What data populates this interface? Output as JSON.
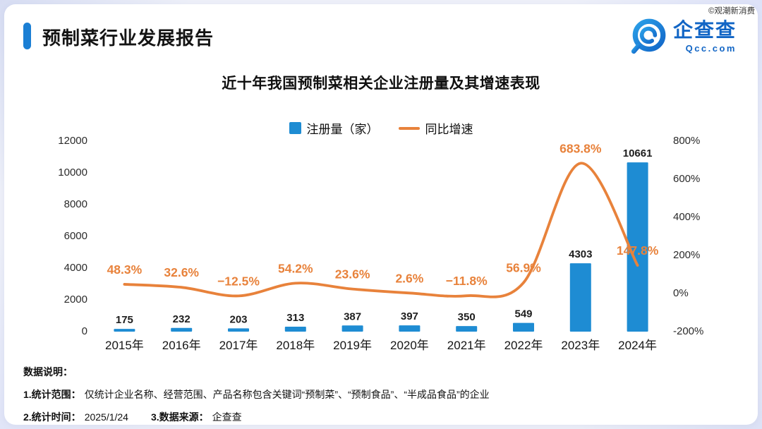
{
  "header": {
    "accent_color": "#1B7FD4",
    "title": "预制菜行业发展报告",
    "brand_name": "企查查",
    "brand_domain": "Qcc.com",
    "watermark": "©观潮新消费"
  },
  "chart_data": {
    "type": "bar+line",
    "title": "近十年我国预制菜相关企业注册量及其增速表现",
    "categories": [
      "2015年",
      "2016年",
      "2017年",
      "2018年",
      "2019年",
      "2020年",
      "2021年",
      "2022年",
      "2023年",
      "2024年"
    ],
    "series": [
      {
        "name": "注册量（家）",
        "type": "bar",
        "color": "#1E8CD3",
        "values": [
          175,
          232,
          203,
          313,
          387,
          397,
          350,
          549,
          4303,
          10661
        ]
      },
      {
        "name": "同比增速",
        "type": "line",
        "color": "#E8823B",
        "values_pct": [
          48.3,
          32.6,
          -12.5,
          54.2,
          23.6,
          2.6,
          -11.8,
          56.9,
          683.8,
          147.8
        ],
        "labels": [
          "48.3%",
          "32.6%",
          "−12.5%",
          "54.2%",
          "23.6%",
          "2.6%",
          "−11.8%",
          "56.9%",
          "683.8%",
          "147.8%"
        ]
      }
    ],
    "left_axis": {
      "min": 0,
      "max": 12000,
      "ticks": [
        0,
        2000,
        4000,
        6000,
        8000,
        10000,
        12000
      ]
    },
    "right_axis": {
      "min": -200,
      "max": 800,
      "ticks": [
        "-200%",
        "0%",
        "200%",
        "400%",
        "600%",
        "800%"
      ]
    },
    "legend_position": "top-center",
    "grid": false
  },
  "footer": {
    "heading": "数据说明：",
    "note1_label": "1.统计范围：",
    "note1_text": "仅统计企业名称、经营范围、产品名称包含关键词“预制菜”、“预制食品”、“半成品食品”的企业",
    "note2_label": "2.统计时间：",
    "note2_text": "2025/1/24",
    "note3_label": "3.数据来源：",
    "note3_text": "企查查"
  }
}
